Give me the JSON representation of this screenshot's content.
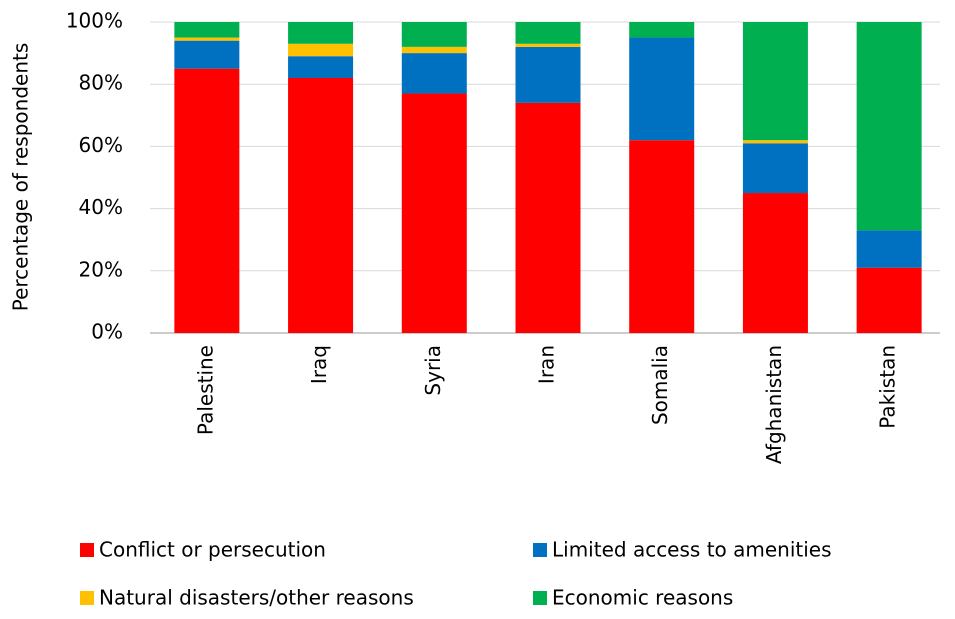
{
  "chart_data": {
    "type": "stacked-bar",
    "y_label": "Percentage of respondents",
    "categories": [
      "Palestine",
      "Iraq",
      "Syria",
      "Iran",
      "Somalia",
      "Afghanistan",
      "Pakistan"
    ],
    "series": [
      {
        "name": "Conflict or persecution",
        "color": "#ff0000",
        "values": [
          85,
          82,
          77,
          74,
          62,
          45,
          21
        ]
      },
      {
        "name": "Limited access to amenities",
        "color": "#0070c0",
        "values": [
          9,
          7,
          13,
          18,
          33,
          16,
          12
        ]
      },
      {
        "name": "Natural disasters/other reasons",
        "color": "#ffc000",
        "values": [
          1,
          4,
          2,
          1,
          0,
          1,
          0
        ]
      },
      {
        "name": "Economic reasons",
        "color": "#00b050",
        "values": [
          5,
          7,
          8,
          7,
          5,
          38,
          67
        ]
      }
    ],
    "ylim": [
      0,
      100
    ],
    "yticks": [
      {
        "value": 0,
        "label": "0%"
      },
      {
        "value": 20,
        "label": "20%"
      },
      {
        "value": 40,
        "label": "40%"
      },
      {
        "value": 60,
        "label": "60%"
      },
      {
        "value": 80,
        "label": "80%"
      },
      {
        "value": 100,
        "label": "100%"
      }
    ],
    "grid": true
  }
}
